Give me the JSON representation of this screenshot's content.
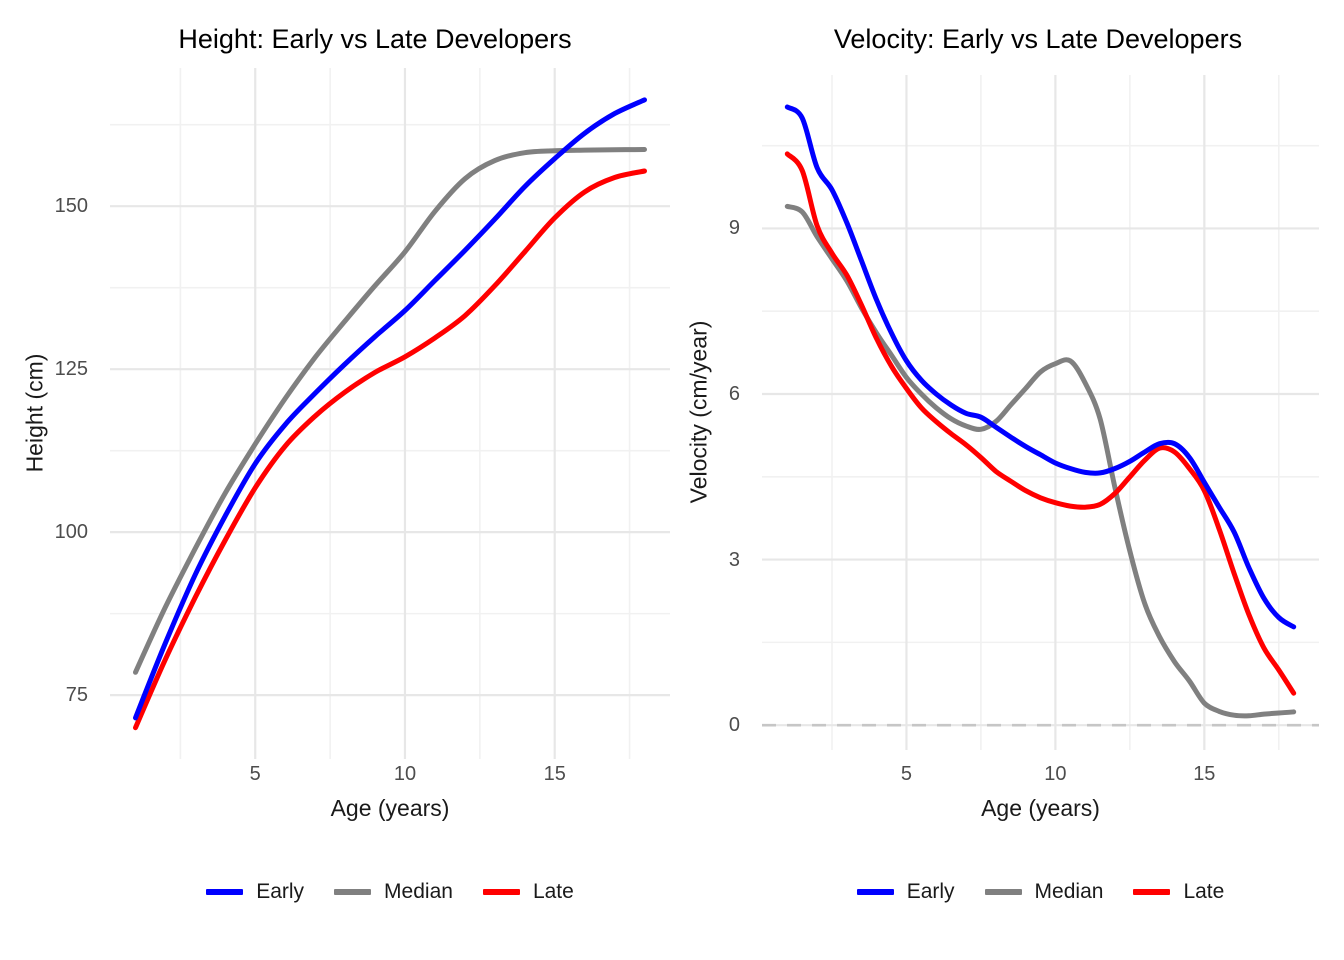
{
  "page": {
    "background": "#ffffff"
  },
  "colors": {
    "early": "#0000ff",
    "median": "#808080",
    "late": "#ff0000",
    "grid_major": "#e7e7e7",
    "grid_minor": "#f1f1f1",
    "zero_line": "#c6c6c6",
    "tick_text": "#4d4d4d",
    "title_text": "#000000"
  },
  "chart_data": [
    {
      "type": "line",
      "title": "Height: Early vs Late Developers",
      "xlabel": "Age (years)",
      "ylabel": "Height (cm)",
      "xlim": [
        0.15,
        18.85
      ],
      "ylim": [
        65.2,
        171.2
      ],
      "x_ticks": [
        5,
        10,
        15
      ],
      "x_tick_labels": [
        "5",
        "10",
        "15"
      ],
      "y_ticks": [
        75,
        100,
        125,
        150
      ],
      "y_tick_labels": [
        "75",
        "100",
        "125",
        "150"
      ],
      "x_minor": [
        2.5,
        7.5,
        12.5,
        17.5
      ],
      "y_minor": [
        87.5,
        112.5,
        137.5,
        162.5
      ],
      "grid": true,
      "zero_line": false,
      "legend_position": "bottom",
      "series": [
        {
          "name": "Early",
          "color": "#0000ff",
          "z": 3,
          "x": [
            1,
            2,
            3,
            4,
            5,
            6,
            7,
            8,
            9,
            10,
            11,
            12,
            13,
            14,
            15,
            16,
            17,
            18
          ],
          "y": [
            71.5,
            83,
            93.5,
            102.5,
            110.5,
            116.5,
            121.3,
            125.8,
            130,
            134,
            138.6,
            143.2,
            148,
            153,
            157.3,
            161.2,
            164.2,
            166.3
          ]
        },
        {
          "name": "Median",
          "color": "#808080",
          "z": 1,
          "x": [
            1,
            2,
            3,
            4,
            5,
            6,
            7,
            8,
            9,
            10,
            11,
            12,
            13,
            14,
            15,
            16,
            17,
            18
          ],
          "y": [
            78.5,
            88.5,
            97.5,
            106,
            113.5,
            120.5,
            126.8,
            132.4,
            137.8,
            143,
            149.2,
            154.2,
            157,
            158.2,
            158.5,
            158.6,
            158.65,
            158.7
          ]
        },
        {
          "name": "Late",
          "color": "#ff0000",
          "z": 2,
          "x": [
            1,
            2,
            3,
            4,
            5,
            6,
            7,
            8,
            9,
            10,
            11,
            12,
            13,
            14,
            15,
            16,
            17,
            18
          ],
          "y": [
            70,
            80.5,
            90,
            98.8,
            106.8,
            113.2,
            117.8,
            121.5,
            124.5,
            126.9,
            129.8,
            133.2,
            137.8,
            143,
            148.2,
            152.2,
            154.4,
            155.4
          ]
        }
      ]
    },
    {
      "type": "line",
      "title": "Velocity: Early vs Late Developers",
      "xlabel": "Age (years)",
      "ylabel": "Velocity (cm/year)",
      "xlim": [
        0.15,
        18.85
      ],
      "ylim": [
        -0.45,
        11.78
      ],
      "x_ticks": [
        5,
        10,
        15
      ],
      "x_tick_labels": [
        "5",
        "10",
        "15"
      ],
      "y_ticks": [
        0,
        3,
        6,
        9
      ],
      "y_tick_labels": [
        "0",
        "3",
        "6",
        "9"
      ],
      "x_minor": [
        2.5,
        7.5,
        12.5,
        17.5
      ],
      "y_minor": [
        1.5,
        4.5,
        7.5,
        10.5
      ],
      "grid": true,
      "zero_line": true,
      "zero_line_value": 0,
      "legend_position": "bottom",
      "series": [
        {
          "name": "Early",
          "color": "#0000ff",
          "z": 3,
          "x": [
            1,
            1.5,
            2,
            2.5,
            3,
            3.5,
            4,
            4.5,
            5,
            5.5,
            6,
            6.5,
            7,
            7.5,
            8,
            8.5,
            9,
            9.5,
            10,
            10.5,
            11,
            11.5,
            12,
            12.5,
            13,
            13.5,
            14,
            14.5,
            15,
            15.5,
            16,
            16.5,
            17,
            17.5,
            18
          ],
          "y": [
            11.2,
            11.0,
            10.1,
            9.7,
            9.1,
            8.4,
            7.7,
            7.1,
            6.6,
            6.25,
            6.0,
            5.8,
            5.65,
            5.58,
            5.4,
            5.22,
            5.05,
            4.9,
            4.75,
            4.65,
            4.58,
            4.57,
            4.65,
            4.78,
            4.95,
            5.1,
            5.1,
            4.85,
            4.4,
            3.95,
            3.5,
            2.85,
            2.3,
            1.95,
            1.78
          ]
        },
        {
          "name": "Median",
          "color": "#808080",
          "z": 1,
          "x": [
            1,
            1.5,
            2,
            2.5,
            3,
            3.5,
            4,
            4.5,
            5,
            5.5,
            6,
            6.5,
            7,
            7.5,
            8,
            8.5,
            9,
            9.5,
            10,
            10.5,
            11,
            11.5,
            12,
            12.5,
            13,
            13.5,
            14,
            14.5,
            15,
            15.5,
            16,
            16.5,
            17,
            17.5,
            18
          ],
          "y": [
            9.4,
            9.3,
            8.85,
            8.45,
            8.05,
            7.55,
            7.1,
            6.7,
            6.3,
            6.0,
            5.75,
            5.55,
            5.42,
            5.36,
            5.5,
            5.8,
            6.1,
            6.4,
            6.55,
            6.6,
            6.2,
            5.55,
            4.3,
            3.15,
            2.2,
            1.6,
            1.15,
            0.8,
            0.4,
            0.25,
            0.18,
            0.17,
            0.2,
            0.22,
            0.24
          ]
        },
        {
          "name": "Late",
          "color": "#ff0000",
          "z": 2,
          "x": [
            1,
            1.5,
            2,
            2.5,
            3,
            3.5,
            4,
            4.5,
            5,
            5.5,
            6,
            6.5,
            7,
            7.5,
            8,
            8.5,
            9,
            9.5,
            10,
            10.5,
            11,
            11.5,
            12,
            12.5,
            13,
            13.5,
            14,
            14.5,
            15,
            15.5,
            16,
            16.5,
            17,
            17.5,
            18
          ],
          "y": [
            10.35,
            10.05,
            9.05,
            8.55,
            8.15,
            7.6,
            7.0,
            6.5,
            6.1,
            5.75,
            5.5,
            5.28,
            5.08,
            4.85,
            4.6,
            4.42,
            4.25,
            4.12,
            4.03,
            3.97,
            3.95,
            4.0,
            4.2,
            4.5,
            4.8,
            5.02,
            4.95,
            4.65,
            4.25,
            3.55,
            2.75,
            2.0,
            1.4,
            1.0,
            0.58
          ]
        }
      ]
    }
  ]
}
